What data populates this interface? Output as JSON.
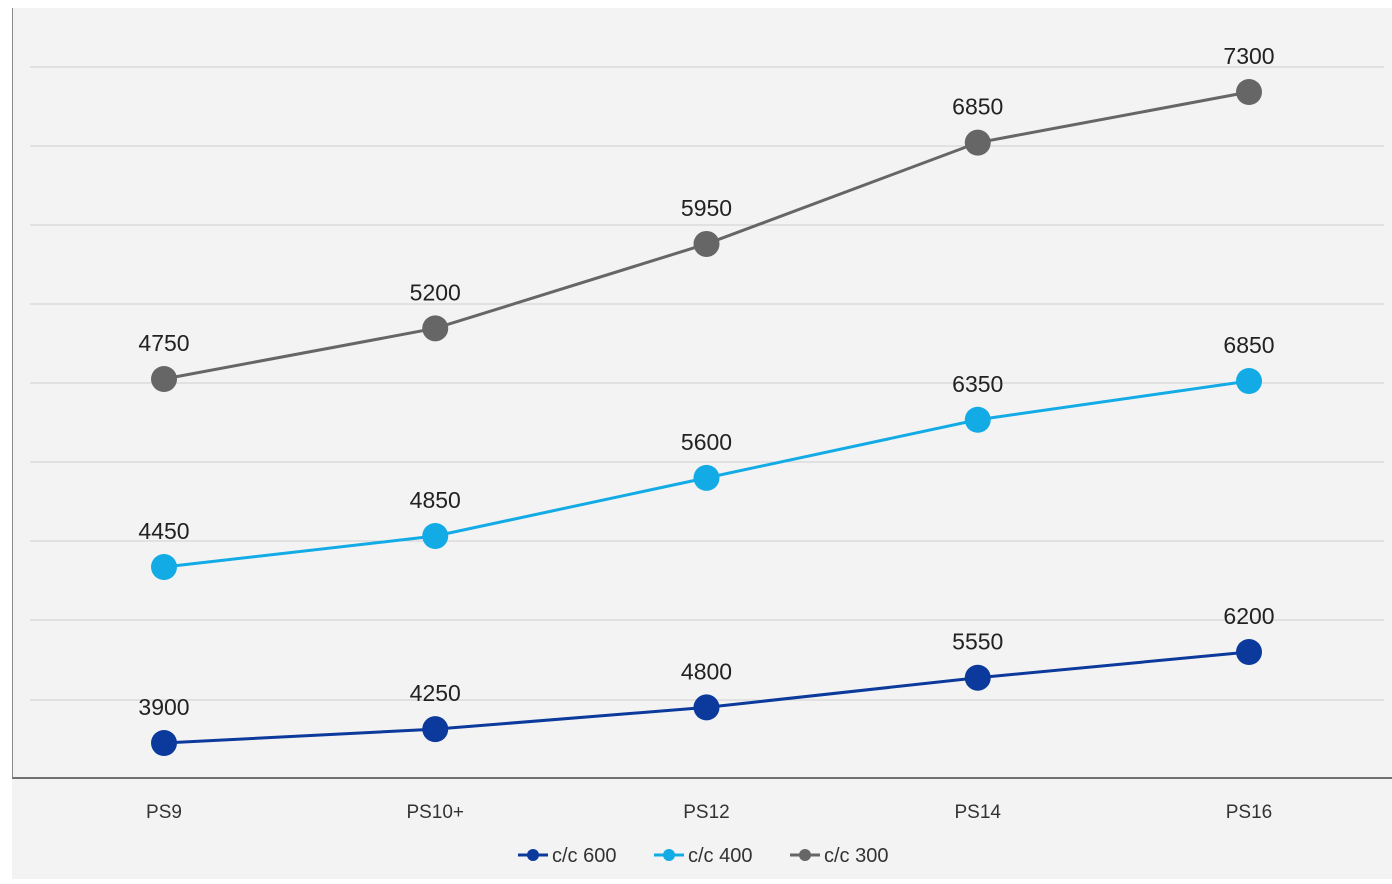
{
  "chart_data": {
    "type": "line",
    "title": "",
    "xlabel": "",
    "ylabel": "",
    "categories": [
      "PS9",
      "PS10+",
      "PS12",
      "PS14",
      "PS16"
    ],
    "series": [
      {
        "name": "c/c 600",
        "color": "#0b3a9c",
        "values": [
          3900,
          4250,
          4800,
          5550,
          6200
        ]
      },
      {
        "name": "c/c 400",
        "color": "#13abe6",
        "values": [
          4450,
          4850,
          5600,
          6350,
          6850
        ]
      },
      {
        "name": "c/c 300",
        "color": "#666666",
        "values": [
          4750,
          5200,
          5950,
          6850,
          7300
        ]
      }
    ],
    "grid": true,
    "legend_position": "bottom"
  }
}
